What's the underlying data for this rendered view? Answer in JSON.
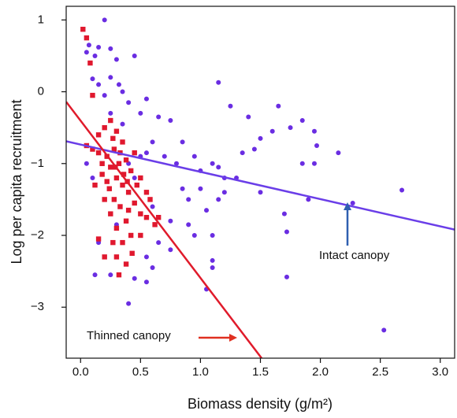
{
  "chart_data": {
    "type": "scatter",
    "x_label": "Biomass density (g/m²)",
    "y_label": "Log per capita recruitment",
    "xlim": [
      -0.12,
      3.12
    ],
    "ylim": [
      -3.71,
      1.19
    ],
    "xticks": [
      {
        "value": 0,
        "label": "0.0"
      },
      0.5,
      {
        "value": 1,
        "label": "1.0"
      },
      1.5,
      {
        "value": 2,
        "label": "2.0"
      },
      2.5,
      {
        "value": 3,
        "label": "3.0"
      }
    ],
    "yticks": [
      {
        "value": -3,
        "label": "−3"
      },
      {
        "value": -2,
        "label": "−2"
      },
      {
        "value": -1,
        "label": "−1"
      },
      0,
      1
    ],
    "series": [
      {
        "name": "Intact canopy",
        "color": "#6a2de2",
        "marker": "circle",
        "x": [
          0.2,
          0.05,
          0.07,
          0.15,
          0.12,
          0.25,
          0.3,
          0.45,
          0.1,
          0.15,
          0.25,
          0.32,
          0.2,
          0.35,
          0.4,
          0.55,
          0.5,
          0.65,
          0.75,
          0.85,
          0.6,
          0.55,
          0.7,
          0.8,
          0.95,
          1.0,
          1.1,
          1.2,
          1.3,
          1.35,
          1.45,
          1.25,
          1.15,
          1.4,
          1.5,
          1.65,
          1.75,
          1.85,
          1.95,
          1.97,
          2.15,
          1.85,
          1.95,
          1.6,
          1.5,
          1.7,
          1.72,
          1.72,
          1.05,
          1.1,
          0.9,
          0.75,
          0.6,
          0.65,
          0.55,
          0.45,
          0.55,
          0.4,
          0.85,
          0.9,
          1.0,
          1.15,
          1.2,
          1.15,
          0.95,
          0.75,
          0.6,
          0.3,
          0.15,
          0.12,
          0.25,
          0.2,
          1.1,
          1.1,
          1.05,
          2.53,
          2.68,
          1.9,
          2.27,
          0.4,
          0.45,
          0.5,
          0.05,
          0.1,
          0.35,
          0.25
        ],
        "values": [
          1.0,
          0.55,
          0.65,
          0.62,
          0.5,
          0.6,
          0.45,
          0.5,
          0.18,
          0.1,
          0.2,
          0.1,
          -0.05,
          0.0,
          -0.15,
          -0.1,
          -0.3,
          -0.35,
          -0.4,
          -0.7,
          -0.7,
          -0.85,
          -0.9,
          -1.0,
          -0.9,
          -1.1,
          -1.0,
          -1.2,
          -1.2,
          -0.85,
          -0.8,
          -0.2,
          0.13,
          -0.35,
          -0.65,
          -0.2,
          -0.5,
          -0.4,
          -0.55,
          -0.75,
          -0.85,
          -1.0,
          -1.0,
          -0.55,
          -1.4,
          -1.7,
          -1.95,
          -2.58,
          -1.65,
          -2.0,
          -1.85,
          -1.8,
          -1.6,
          -2.1,
          -2.3,
          -2.6,
          -2.65,
          -2.95,
          -1.35,
          -1.5,
          -1.35,
          -1.05,
          -1.4,
          -1.5,
          -2.0,
          -2.2,
          -2.45,
          -1.85,
          -2.1,
          -2.55,
          -2.55,
          -2.3,
          -2.35,
          -2.45,
          -2.75,
          -3.32,
          -1.37,
          -1.5,
          -1.55,
          -1.0,
          -1.2,
          -0.9,
          -1.0,
          -1.2,
          -0.45,
          -0.3
        ],
        "fit": {
          "color": "#6a3ee8",
          "x": [
            -0.12,
            3.12
          ],
          "values": [
            -0.69,
            -1.92
          ]
        }
      },
      {
        "name": "Thinned canopy",
        "color": "#e0182e",
        "marker": "square",
        "x": [
          0.02,
          0.05,
          0.08,
          0.1,
          0.15,
          0.2,
          0.25,
          0.3,
          0.35,
          0.28,
          0.22,
          0.15,
          0.1,
          0.05,
          0.18,
          0.25,
          0.32,
          0.38,
          0.42,
          0.3,
          0.22,
          0.35,
          0.4,
          0.28,
          0.33,
          0.45,
          0.5,
          0.25,
          0.2,
          0.38,
          0.3,
          0.42,
          0.35,
          0.5,
          0.55,
          0.65,
          0.62,
          0.3,
          0.38,
          0.32,
          0.2,
          0.15,
          0.18,
          0.12,
          0.45,
          0.5,
          0.55,
          0.27,
          0.36,
          0.4,
          0.24,
          0.47,
          0.58,
          0.43,
          0.27,
          0.33,
          0.29,
          0.39
        ],
        "values": [
          0.87,
          0.75,
          0.4,
          -0.05,
          -0.6,
          -0.5,
          -0.4,
          -0.55,
          -0.7,
          -0.8,
          -0.9,
          -0.85,
          -0.8,
          -0.75,
          -1.0,
          -1.05,
          -1.0,
          -0.95,
          -1.1,
          -1.2,
          -1.25,
          -1.3,
          -1.4,
          -1.5,
          -1.6,
          -1.55,
          -1.7,
          -1.7,
          -1.5,
          -1.8,
          -1.9,
          -2.0,
          -2.1,
          -2.0,
          -1.75,
          -1.75,
          -1.85,
          -2.3,
          -2.4,
          -2.55,
          -2.3,
          -2.05,
          -1.15,
          -1.3,
          -0.85,
          -1.2,
          -1.4,
          -0.65,
          -1.15,
          -1.65,
          -1.35,
          -1.3,
          -1.5,
          -2.25,
          -2.1,
          -0.85,
          -1.05,
          -1.25
        ],
        "fit": {
          "color": "#e01b2b",
          "x": [
            -0.12,
            1.51
          ],
          "values": [
            -0.14,
            -3.71
          ]
        }
      }
    ]
  }
}
